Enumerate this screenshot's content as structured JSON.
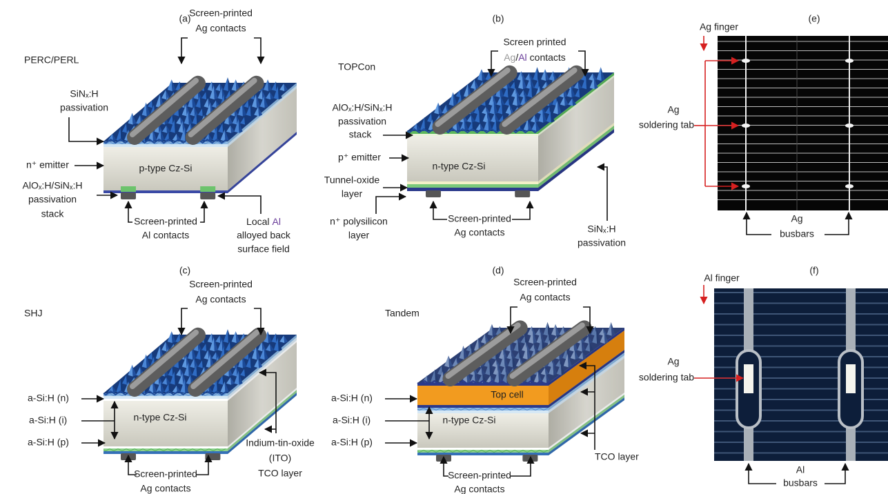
{
  "panel_a": {
    "label": "(a)",
    "title": "PERC/PERL",
    "bulk": "p-type Cz-Si",
    "front_contacts": [
      "Screen-printed",
      "Ag contacts"
    ],
    "front_passivation": [
      "SiNₓ:H",
      "passivation"
    ],
    "emitter": "n⁺ emitter",
    "rear_passivation": [
      "AlOₓ:H/SiNₓ:H",
      "passivation",
      "stack"
    ],
    "rear_contacts": [
      "Screen-printed",
      "Al contacts"
    ],
    "bsf": {
      "line1": [
        "Local",
        "Al"
      ],
      "lines": [
        "alloyed back",
        "surface field"
      ]
    }
  },
  "panel_b": {
    "label": "(b)",
    "title": "TOPCon",
    "bulk": "n-type Cz-Si",
    "front_contacts": {
      "line1": "Screen printed",
      "line2": [
        "Ag",
        "/",
        "Al",
        "contacts"
      ]
    },
    "front_passivation": [
      "AlOₓ:H/SiNₓ:H",
      "passivation",
      "stack"
    ],
    "emitter": "p⁺ emitter",
    "tunnel_oxide": [
      "Tunnel-oxide",
      "layer"
    ],
    "polysilicon": [
      "n⁺ polysilicon",
      "layer"
    ],
    "rear_contacts": [
      "Screen-printed",
      "Ag contacts"
    ],
    "rear_passivation": [
      "SiNₓ:H",
      "passivation"
    ]
  },
  "panel_c": {
    "label": "(c)",
    "title": "SHJ",
    "bulk": "n-type Cz-Si",
    "front_contacts": [
      "Screen-printed",
      "Ag contacts"
    ],
    "layers": [
      "a-Si:H (n)",
      "a-Si:H (i)",
      "a-Si:H (p)"
    ],
    "rear_contacts": [
      "Screen-printed",
      "Ag contacts"
    ],
    "tco": [
      "Indium-tin-oxide",
      "(ITO)",
      "TCO layer"
    ]
  },
  "panel_d": {
    "label": "(d)",
    "title": "Tandem",
    "top_cell": "Top cell",
    "bulk": "n-type Cz-Si",
    "front_contacts": [
      "Screen-printed",
      "Ag contacts"
    ],
    "layers": [
      "a-Si:H (n)",
      "a-Si:H (i)",
      "a-Si:H (p)"
    ],
    "rear_contacts": [
      "Screen-printed",
      "Ag contacts"
    ],
    "tco": "TCO layer"
  },
  "panel_e": {
    "label": "(e)",
    "finger": "Ag finger",
    "soldering_tab": [
      "Ag",
      "soldering tab"
    ],
    "busbars": [
      "Ag",
      "busbars"
    ]
  },
  "panel_f": {
    "label": "(f)",
    "finger": "Al finger",
    "soldering_tab": [
      "Ag",
      "soldering tab"
    ],
    "busbars": [
      "Al",
      "busbars"
    ]
  }
}
